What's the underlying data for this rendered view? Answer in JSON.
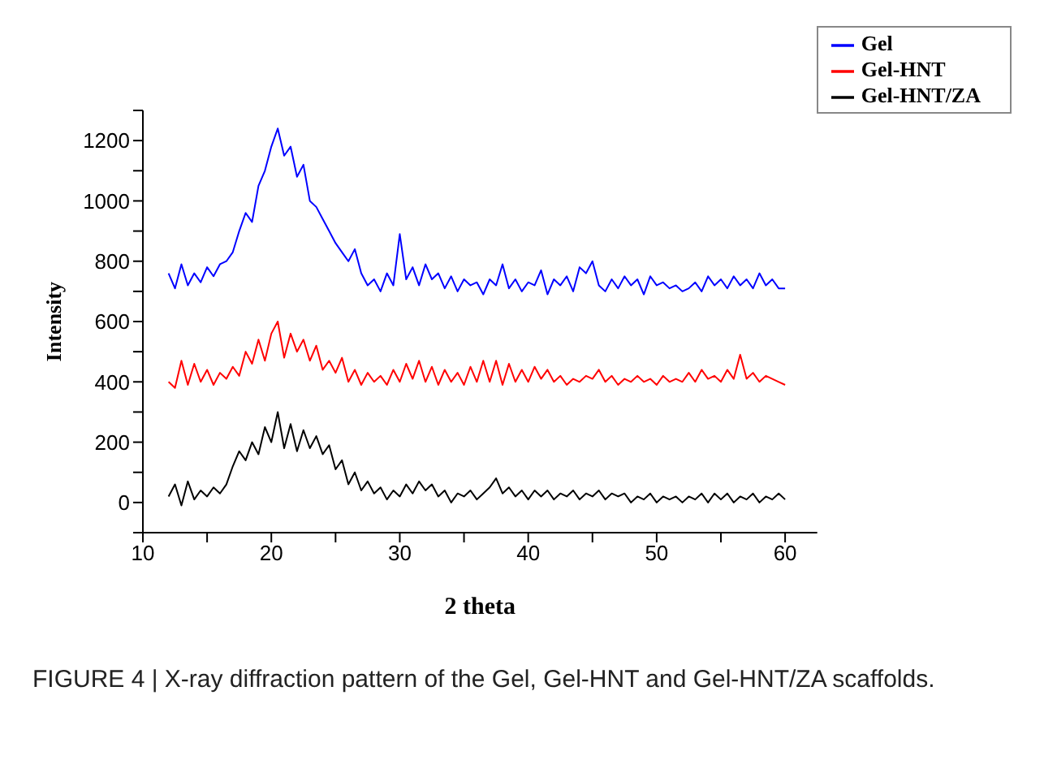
{
  "chart_data": {
    "type": "line",
    "xlabel": "2 theta",
    "ylabel": "Intensity",
    "annotations": [
      "FIGURE 4 | X-ray diffraction pattern of the Gel, Gel-HNT and Gel-HNT/ZA scaffolds."
    ],
    "x": [
      12,
      12.5,
      13,
      13.5,
      14,
      14.5,
      15,
      15.5,
      16,
      16.5,
      17,
      17.5,
      18,
      18.5,
      19,
      19.5,
      20,
      20.5,
      21,
      21.5,
      22,
      22.5,
      23,
      23.5,
      24,
      24.5,
      25,
      25.5,
      26,
      26.5,
      27,
      27.5,
      28,
      28.5,
      29,
      29.5,
      30,
      30.5,
      31,
      31.5,
      32,
      32.5,
      33,
      33.5,
      34,
      34.5,
      35,
      35.5,
      36,
      36.5,
      37,
      37.5,
      38,
      38.5,
      39,
      39.5,
      40,
      40.5,
      41,
      41.5,
      42,
      42.5,
      43,
      43.5,
      44,
      44.5,
      45,
      45.5,
      46,
      46.5,
      47,
      47.5,
      48,
      48.5,
      49,
      49.5,
      50,
      50.5,
      51,
      51.5,
      52,
      52.5,
      53,
      53.5,
      54,
      54.5,
      55,
      55.5,
      56,
      56.5,
      57,
      57.5,
      58,
      58.5,
      59,
      59.5,
      60
    ],
    "series": [
      {
        "name": "Gel",
        "color": "#0000ff",
        "values": [
          760,
          710,
          790,
          720,
          760,
          730,
          780,
          750,
          790,
          800,
          830,
          900,
          960,
          930,
          1050,
          1100,
          1180,
          1240,
          1150,
          1180,
          1080,
          1120,
          1000,
          980,
          940,
          900,
          860,
          830,
          800,
          840,
          760,
          720,
          740,
          700,
          760,
          720,
          890,
          740,
          780,
          720,
          790,
          740,
          760,
          710,
          750,
          700,
          740,
          720,
          730,
          690,
          740,
          720,
          790,
          710,
          740,
          700,
          730,
          720,
          770,
          690,
          740,
          720,
          750,
          700,
          780,
          760,
          800,
          720,
          700,
          740,
          710,
          750,
          720,
          740,
          690,
          750,
          720,
          730,
          710,
          720,
          700,
          710,
          730,
          700,
          750,
          720,
          740,
          710,
          750,
          720,
          740,
          710,
          760,
          720,
          740,
          710,
          710
        ]
      },
      {
        "name": "Gel-HNT",
        "color": "#ff0000",
        "values": [
          400,
          380,
          470,
          390,
          460,
          400,
          440,
          390,
          430,
          410,
          450,
          420,
          500,
          460,
          540,
          470,
          560,
          600,
          480,
          560,
          500,
          540,
          470,
          520,
          440,
          470,
          430,
          480,
          400,
          440,
          390,
          430,
          400,
          420,
          390,
          440,
          400,
          460,
          410,
          470,
          400,
          450,
          390,
          440,
          400,
          430,
          390,
          450,
          400,
          470,
          400,
          470,
          390,
          460,
          400,
          440,
          400,
          450,
          410,
          440,
          400,
          420,
          390,
          410,
          400,
          420,
          410,
          440,
          400,
          420,
          390,
          410,
          400,
          420,
          400,
          410,
          390,
          420,
          400,
          410,
          400,
          430,
          400,
          440,
          410,
          420,
          400,
          440,
          410,
          490,
          410,
          430,
          400,
          420,
          410,
          400,
          390
        ]
      },
      {
        "name": "Gel-HNT/ZA",
        "color": "#000000",
        "values": [
          20,
          60,
          -10,
          70,
          10,
          40,
          20,
          50,
          30,
          60,
          120,
          170,
          140,
          200,
          160,
          250,
          200,
          300,
          180,
          260,
          170,
          240,
          180,
          220,
          160,
          190,
          110,
          140,
          60,
          100,
          40,
          70,
          30,
          50,
          10,
          40,
          20,
          60,
          30,
          70,
          40,
          60,
          20,
          40,
          0,
          30,
          20,
          40,
          10,
          30,
          50,
          80,
          30,
          50,
          20,
          40,
          10,
          40,
          20,
          40,
          10,
          30,
          20,
          40,
          10,
          30,
          20,
          40,
          10,
          30,
          20,
          30,
          0,
          20,
          10,
          30,
          0,
          20,
          10,
          20,
          0,
          20,
          10,
          30,
          0,
          30,
          10,
          30,
          0,
          20,
          10,
          30,
          0,
          20,
          10,
          30,
          10
        ]
      }
    ],
    "xlim": [
      10,
      62.5
    ],
    "xticks": [
      10,
      {
        "value": 15,
        "label": null
      },
      20,
      {
        "value": 25,
        "label": null
      },
      30,
      {
        "value": 35,
        "label": null
      },
      40,
      {
        "value": 45,
        "label": null
      },
      50,
      {
        "value": 55,
        "label": null
      },
      60
    ],
    "ylim": [
      -100,
      1300
    ],
    "yticks": [
      {
        "value": -100,
        "label": null
      },
      0,
      {
        "value": 100,
        "label": null
      },
      200,
      {
        "value": 300,
        "label": null
      },
      400,
      {
        "value": 500,
        "label": null
      },
      600,
      {
        "value": 700,
        "label": null
      },
      800,
      {
        "value": 900,
        "label": null
      },
      1000,
      {
        "value": 1100,
        "label": null
      },
      1200,
      {
        "value": 1300,
        "label": null
      }
    ],
    "grid": false,
    "legend": "top right",
    "marker": "none",
    "line_style": "solid"
  }
}
